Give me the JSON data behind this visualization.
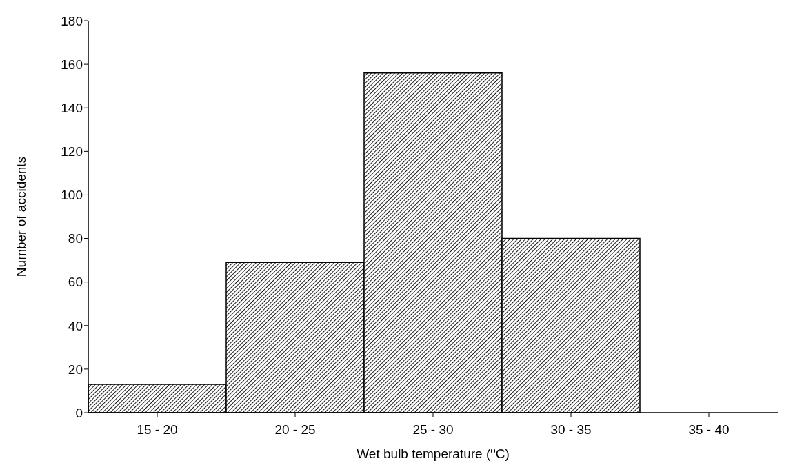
{
  "chart_data": {
    "type": "bar",
    "categories": [
      "15 - 20",
      "20 - 25",
      "25 - 30",
      "30 - 35",
      "35 - 40"
    ],
    "values": [
      13,
      69,
      156,
      80,
      0
    ],
    "color": "#000000",
    "xlabel": "Wet bulb temperature ($^{o}$C)",
    "ylabel": "Number of accidents",
    "ylim": [
      0,
      180
    ],
    "yticks": [
      0,
      20,
      40,
      60,
      80,
      100,
      120,
      140,
      160,
      180
    ],
    "grid": false,
    "legend": false
  }
}
